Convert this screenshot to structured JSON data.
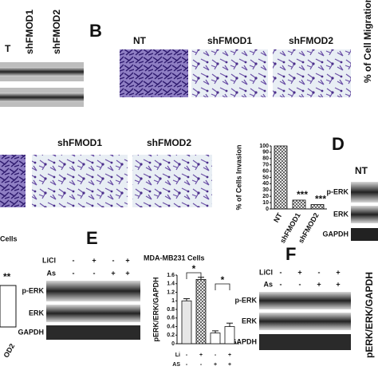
{
  "panel_a": {
    "lanes": [
      "T",
      "shFMOD1",
      "shFMOD2"
    ]
  },
  "panel_b": {
    "label": "B",
    "images": [
      "NT",
      "shFMOD1",
      "shFMOD2"
    ],
    "chart_ylabel": "% of Cell Migration"
  },
  "invasion": {
    "images": [
      "shFMOD1",
      "shFMOD2"
    ],
    "chart": {
      "type": "bar",
      "ylabel": "% of Cells Invasion",
      "categories": [
        "NT",
        "shFMOD1",
        "shFMOD2"
      ],
      "values": [
        100,
        14,
        7
      ],
      "annotations": [
        null,
        "***",
        "***"
      ],
      "color": "#cfcfcf",
      "ylim": [
        0,
        100
      ],
      "yticks": [
        0,
        10,
        20,
        30,
        40,
        50,
        60,
        70,
        80,
        90,
        100
      ]
    }
  },
  "panel_d": {
    "label": "D",
    "lane": "NT",
    "rows": [
      "p-ERK",
      "ERK",
      "GAPDH"
    ]
  },
  "partial": {
    "title": "Cells",
    "annotation": "**",
    "category": "OD2"
  },
  "panel_e": {
    "label": "E",
    "treatments": [
      {
        "name": "LiCl",
        "signs": [
          "-",
          "+",
          "-",
          "+"
        ]
      },
      {
        "name": "As",
        "signs": [
          "-",
          "-",
          "+",
          "+"
        ]
      }
    ],
    "rows": [
      "p-ERK",
      "ERK",
      "GAPDH"
    ],
    "chart": {
      "type": "bar",
      "title": "MDA-MB231 Cells",
      "ylabel": "pERK/ERK/GAPDH",
      "values": [
        1.0,
        1.5,
        0.25,
        0.4
      ],
      "errors": [
        0.05,
        0.05,
        0.05,
        0.08
      ],
      "ylim": [
        0,
        1.6
      ],
      "yticks": [
        0,
        0.2,
        0.4,
        0.6,
        0.8,
        1,
        1.2,
        1.4,
        1.6
      ],
      "annotations": [
        "*",
        "*"
      ],
      "xrows": [
        {
          "name": "Li",
          "signs": [
            "-",
            "+",
            "-",
            "+"
          ]
        },
        {
          "name": "AS",
          "signs": [
            "-",
            "-",
            "+",
            "+"
          ]
        }
      ]
    }
  },
  "panel_f": {
    "label": "F",
    "treatments": [
      {
        "name": "LiCl",
        "signs": [
          "-",
          "+",
          "-",
          "+"
        ]
      },
      {
        "name": "As",
        "signs": [
          "-",
          "-",
          "+",
          "+"
        ]
      }
    ],
    "rows": [
      "p-ERK",
      "ERK",
      "GAPDH"
    ],
    "chart_ylabel": "pERK/ERK/GAPDH"
  }
}
